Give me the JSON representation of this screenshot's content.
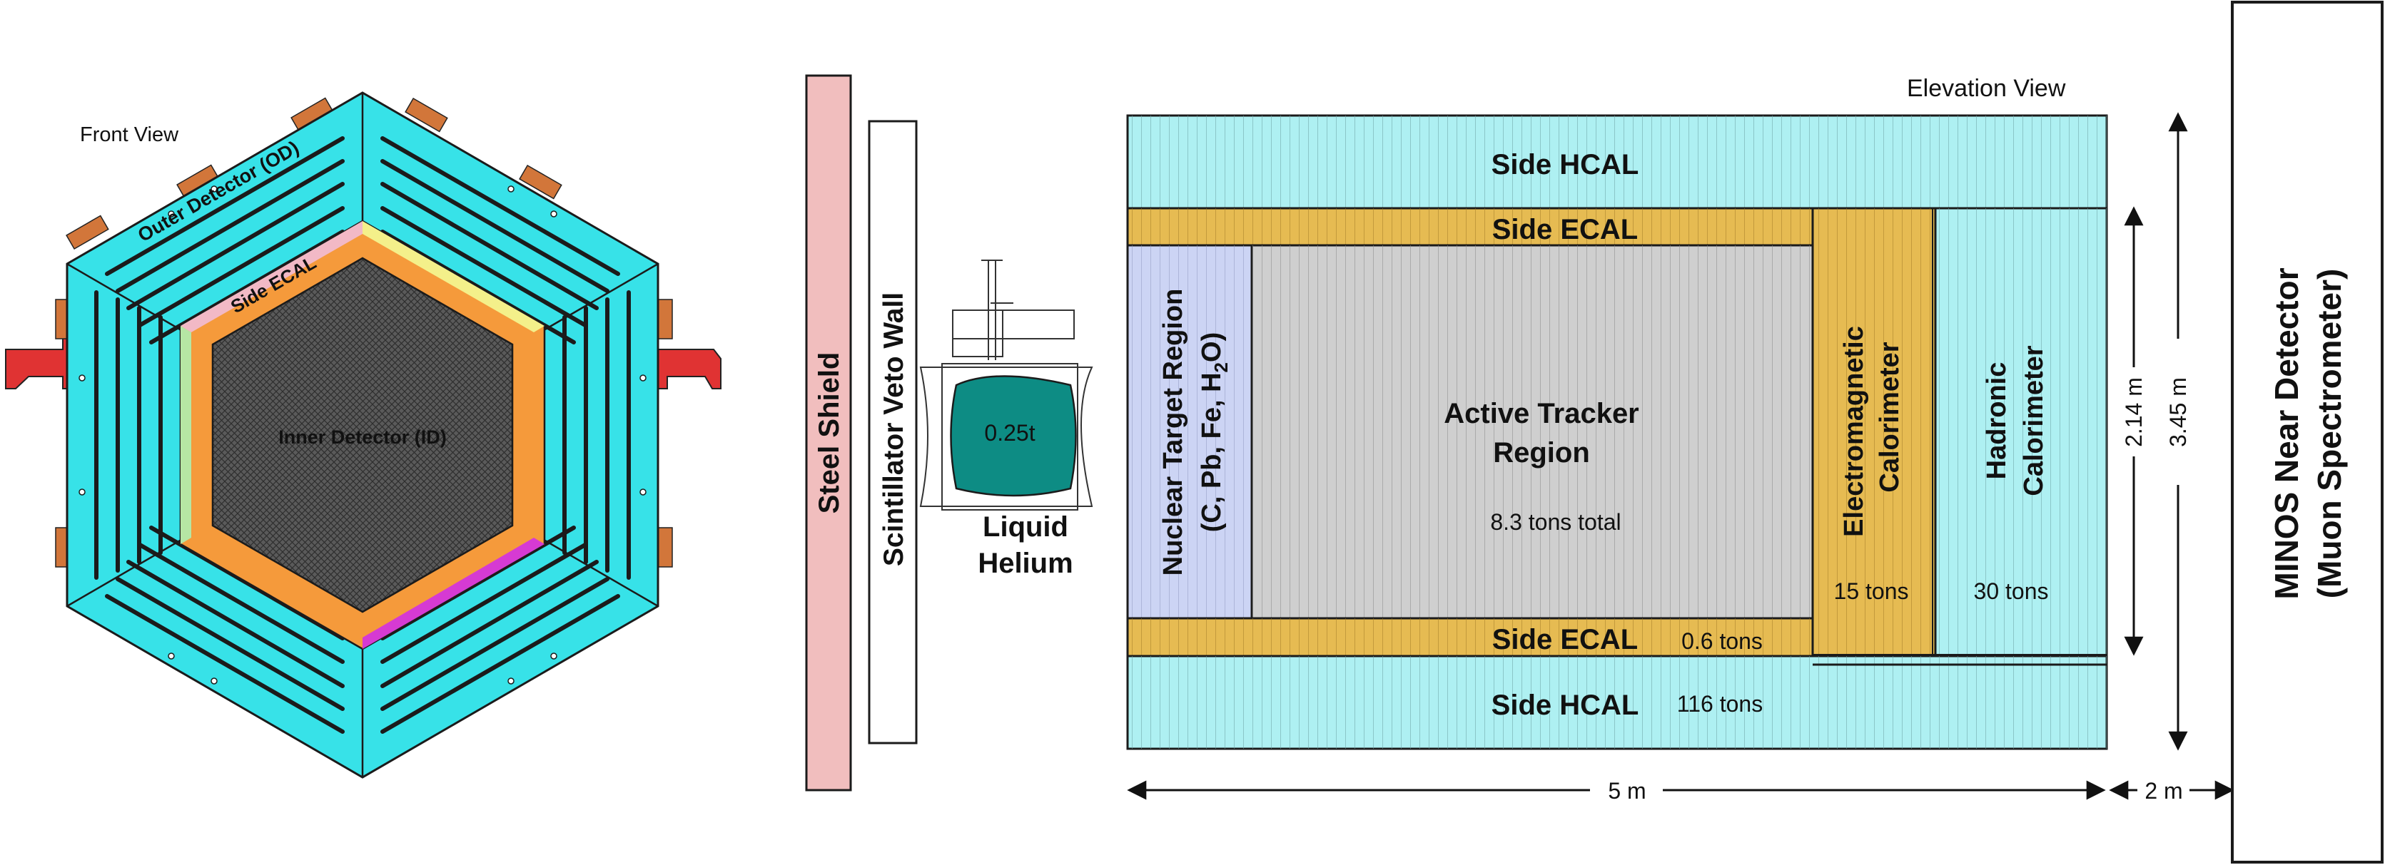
{
  "front_view": {
    "title": "Front View",
    "outer_detector": "Outer Detector (OD)",
    "side_ecal": "Side ECAL",
    "inner_detector": "Inner Detector (ID)"
  },
  "elevation": {
    "title": "Elevation View",
    "steel_shield": "Steel Shield",
    "veto_wall": "Scintillator Veto Wall",
    "helium_mass": "0.25t",
    "helium_label_1": "Liquid",
    "helium_label_2": "Helium",
    "side_hcal_top": "Side HCAL",
    "side_ecal_top": "Side ECAL",
    "nuclear_target_1": "Nuclear Target Region",
    "nuclear_target_2_prefix": "(C, Pb, Fe, H",
    "nuclear_target_2_sub": "2",
    "nuclear_target_2_suffix": "O)",
    "tracker_1": "Active Tracker",
    "tracker_2": "Region",
    "tracker_mass": "8.3 tons total",
    "ecal_1": "Electromagnetic",
    "ecal_2": "Calorimeter",
    "ecal_mass": "15 tons",
    "hcal_1": "Hadronic",
    "hcal_2": "Calorimeter",
    "hcal_mass": "30 tons",
    "side_ecal_bottom": "Side ECAL",
    "side_ecal_mass": "0.6 tons",
    "side_hcal_bottom": "Side HCAL",
    "side_hcal_mass": "116 tons",
    "dim_length": "5 m",
    "dim_gap": "2 m",
    "dim_inner_height": "2.14 m",
    "dim_outer_height": "3.45 m",
    "minos_1": "MINOS Near Detector",
    "minos_2": "(Muon Spectrometer)"
  },
  "colors": {
    "hcal": "#aef0f2",
    "ecal": "#e6bb52",
    "nuclear": "#ccd4f4",
    "tracker": "#cfcfcf",
    "shield": "#f1bebe",
    "helium": "#0d8c84",
    "od": "#37e2e8",
    "side_ecal": "#f59a3b",
    "inner": "#4c4c4c",
    "bracket": "#e03333"
  }
}
